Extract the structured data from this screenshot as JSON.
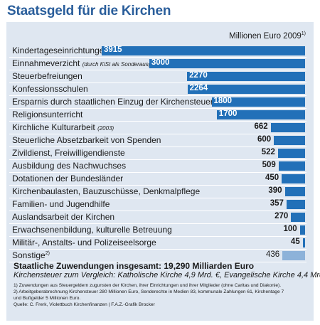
{
  "title": "Staatsgeld für die Kirchen",
  "unit": "Millionen Euro 2009",
  "unit_note": "1)",
  "chart_data": {
    "type": "bar",
    "orientation": "horizontal",
    "categories": [
      "Kindertageseinrichtungen",
      "Einnahmeverzicht",
      "Steuerbefreiungen",
      "Konfessionsschulen",
      "Ersparnis durch staatlichen Einzug der Kirchensteuer",
      "Religionsunterricht",
      "Kirchliche Kulturarbeit",
      "Steuerliche Absetzbarkeit von Spenden",
      "Zivildienst, Freiwilligendienste",
      "Ausbildung des Nachwuchses",
      "Dotationen der Bundesländer",
      "Kirchenbaulasten, Bauzuschüsse, Denkmalpflege",
      "Familien- und Jugendhilfe",
      "Auslandsarbeit der Kirchen",
      "Erwachsenenbildung, kulturelle Betreuung",
      "Militär-, Anstalts- und Polizeiseelsorge",
      "Sonstige"
    ],
    "label_suffixes": [
      "",
      "(durch KiSt als Sonderausg.)",
      "",
      "",
      "",
      "",
      "(2003)",
      "",
      "",
      "",
      "",
      "",
      "",
      "",
      "",
      "",
      "2)"
    ],
    "values": [
      3915,
      3000,
      2270,
      2264,
      1800,
      1700,
      662,
      600,
      522,
      509,
      450,
      390,
      357,
      270,
      100,
      45,
      436
    ],
    "value_labels": [
      "3915",
      "3000",
      "2270",
      "2264",
      "1800",
      "1700",
      "662",
      "600",
      "522",
      "509",
      "450",
      "390",
      "357",
      "270",
      "100",
      "45",
      "436"
    ],
    "xlim": [
      0,
      3915
    ],
    "colors": {
      "bar": "#2270b8",
      "other": "#8db2d9",
      "panel": "#dfe7f1",
      "title": "#2a5e9b"
    },
    "grid": false,
    "legend": "none"
  },
  "total": "Staatliche Zuwendungen insgesamt: 19,290 Milliarden Euro",
  "compare": "Kirchensteuer zum Vergleich: Katholische Kirche 4,9 Mrd. €, Evangelische Kirche 4,4 Mrd. €",
  "notes": [
    "1) Zuwendungen aus Steuergeldern zugunsten der Kirchen, ihrer Einrichtungen und ihrer Mitglieder (ohne Caritas und Diakonie).",
    "2) Arbeitgeberabrechnung Kirchensteuer 280 Millionen Euro, Senderechte in Medien 83, kommunale Zahlungen 61, Kirchentage 7",
    "und Bußgelder 5 Millionen Euro.",
    "Quelle: C. Frerk, Violettbuch Kirchenfinanzen | F.A.Z.-Grafik Brocker"
  ]
}
